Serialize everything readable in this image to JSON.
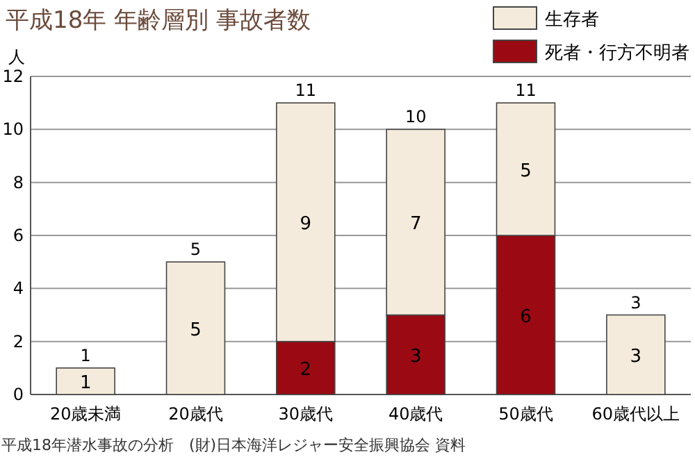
{
  "chart_data": {
    "type": "bar",
    "stacked": true,
    "title": "平成18年 年齢層別 事故者数",
    "ylabel": "人",
    "categories": [
      "20歳未満",
      "20歳代",
      "30歳代",
      "40歳代",
      "50歳代",
      "60歳代以上"
    ],
    "series": [
      {
        "name": "死者・行方不明者",
        "color": "#9b0a12",
        "values": [
          0,
          0,
          2,
          3,
          6,
          0
        ],
        "value_labels": [
          null,
          null,
          "2",
          "3",
          "6",
          null
        ]
      },
      {
        "name": "生存者",
        "color": "#f5ebdc",
        "values": [
          1,
          5,
          9,
          7,
          5,
          3
        ],
        "value_labels": [
          "1",
          "5",
          "9",
          "7",
          "5",
          "3"
        ]
      }
    ],
    "totals": [
      "1",
      "5",
      "11",
      "10",
      "11",
      "3"
    ],
    "ylim": [
      0,
      12
    ],
    "yticks": [
      0,
      2,
      4,
      6,
      8,
      10,
      12
    ],
    "grid": "y",
    "legend": "top right",
    "annotations": [
      "平成18年潜水事故の分析　(財)日本海洋レジャー安全振興協会 資料"
    ]
  }
}
